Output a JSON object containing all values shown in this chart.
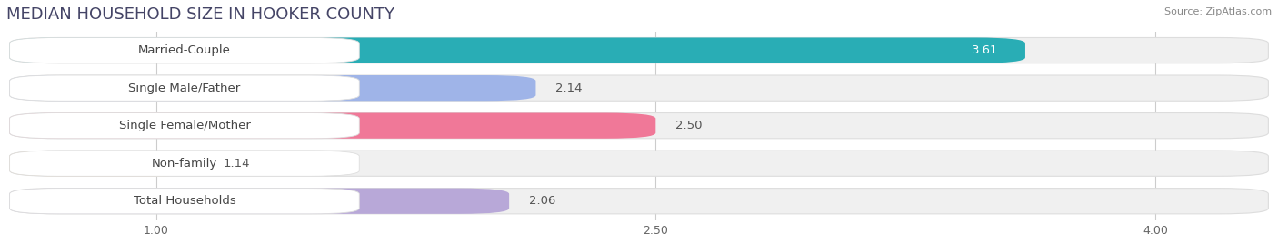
{
  "title": "MEDIAN HOUSEHOLD SIZE IN HOOKER COUNTY",
  "source": "Source: ZipAtlas.com",
  "categories": [
    "Married-Couple",
    "Single Male/Father",
    "Single Female/Mother",
    "Non-family",
    "Total Households"
  ],
  "values": [
    3.61,
    2.14,
    2.5,
    1.14,
    2.06
  ],
  "bar_colors": [
    "#29adb5",
    "#9fb4e8",
    "#f07898",
    "#f5c98c",
    "#b8a8d8"
  ],
  "value_label_colors": [
    "#ffffff",
    "#555555",
    "#555555",
    "#555555",
    "#555555"
  ],
  "xlim_min": 0.55,
  "xlim_max": 4.35,
  "data_min": 1.0,
  "xticks": [
    1.0,
    2.5,
    4.0
  ],
  "xtick_labels": [
    "1.00",
    "2.50",
    "4.00"
  ],
  "title_fontsize": 13,
  "label_fontsize": 9.5,
  "value_fontsize": 9.5,
  "background_color": "#ffffff",
  "track_color": "#f0f0f0",
  "track_edge_color": "#dddddd"
}
